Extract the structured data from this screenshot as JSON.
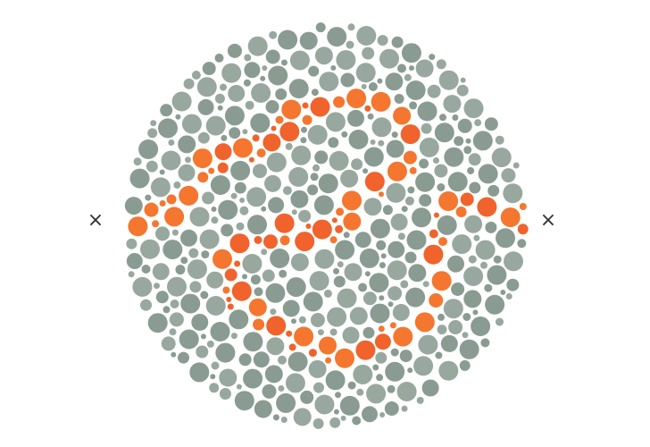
{
  "plate": {
    "description_colors": {
      "background": "#ffffff",
      "field_dot": "#8a9c91",
      "field_dot_alt": "#98a89e",
      "figure_dot": "#f0632c",
      "figure_dot_alt": "#f4762f"
    },
    "markers": {
      "left": "×",
      "right": "×"
    }
  }
}
